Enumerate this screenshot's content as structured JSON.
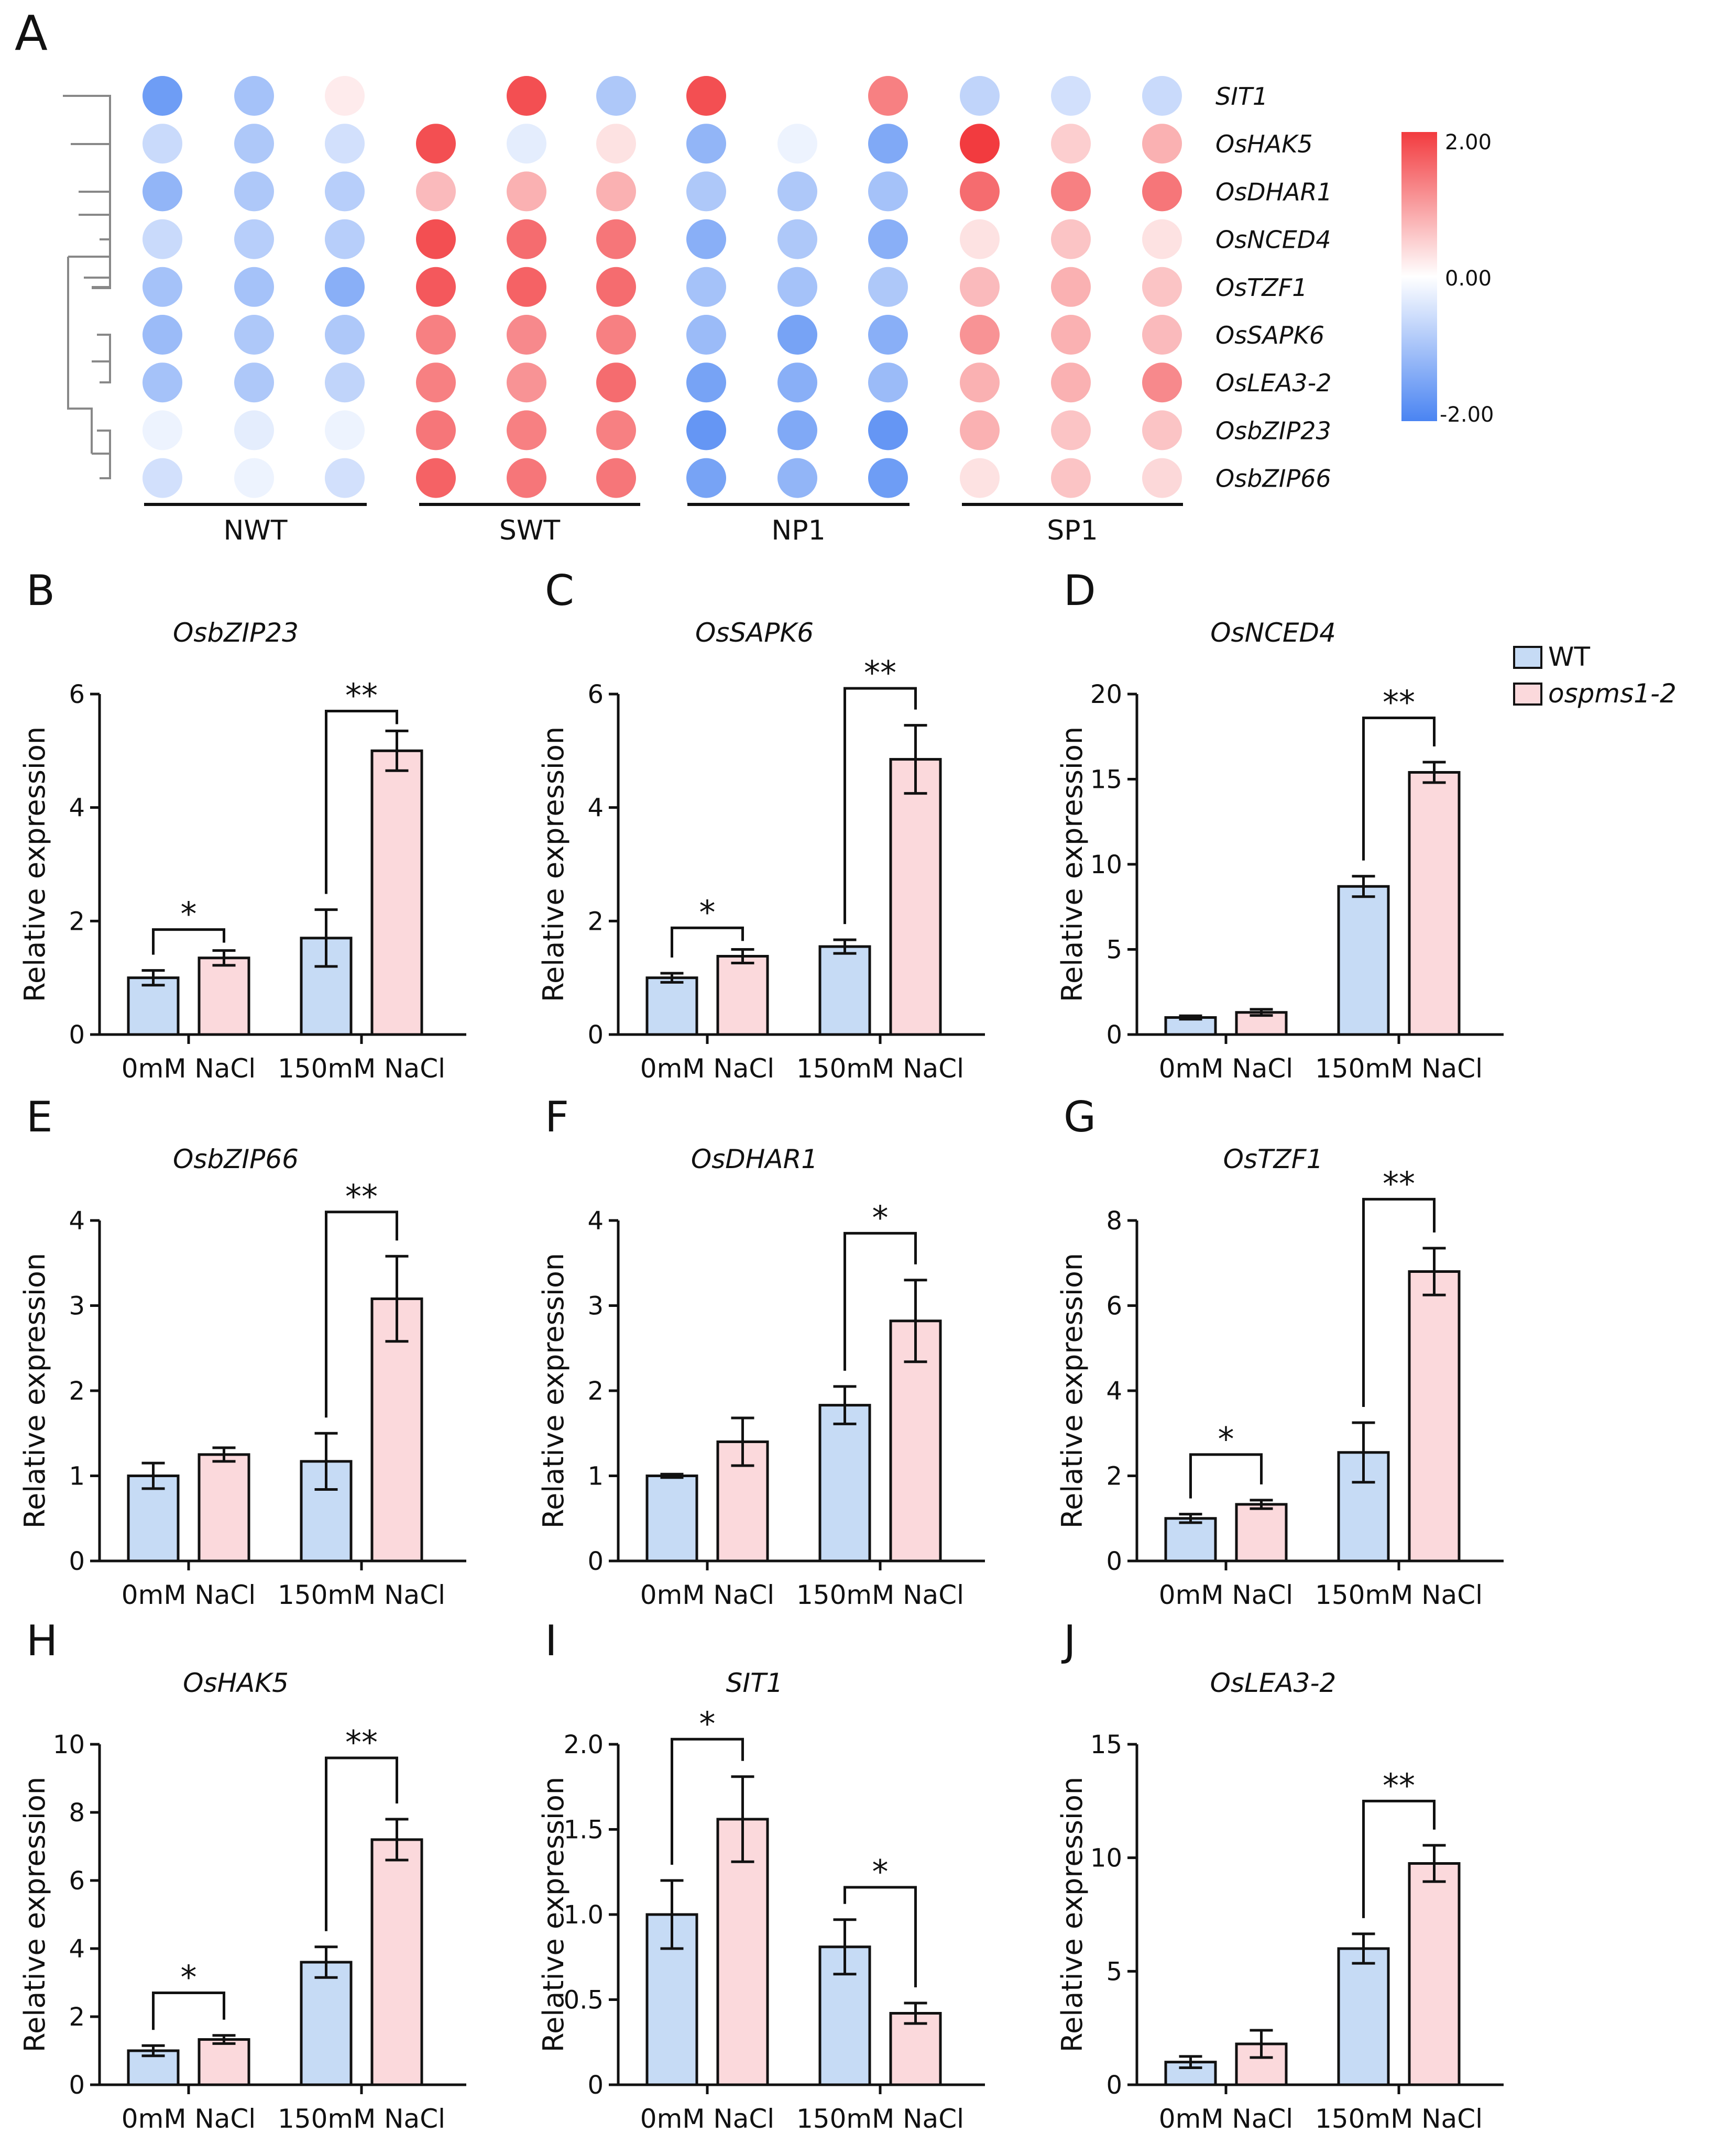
{
  "colors": {
    "wt_fill": "#c6dbf5",
    "mut_fill": "#fbd9dc",
    "bar_stroke": "#111111",
    "scale_high": "#f23b3f",
    "scale_mid": "#ffffff",
    "scale_low": "#4a84f2"
  },
  "chart_data": [
    {
      "id": "A",
      "type": "heatmap",
      "panel_letter": "A",
      "rows": [
        "SIT1",
        "OsHAK5",
        "OsDHAR1",
        "OsNCED4",
        "OsTZF1",
        "OsSAPK6",
        "OsLEA3-2",
        "OsbZIP23",
        "OsbZIP66"
      ],
      "groups": [
        "NWT",
        "SWT",
        "NP1",
        "SP1"
      ],
      "replicates_per_group": 3,
      "values": [
        [
          -1.6,
          -1.0,
          0.2,
          null,
          1.8,
          -0.9,
          1.8,
          null,
          1.3,
          -0.7,
          -0.5,
          -0.6
        ],
        [
          -0.6,
          -0.9,
          -0.5,
          1.8,
          -0.3,
          0.3,
          -1.2,
          -0.2,
          -1.4,
          2.0,
          0.5,
          0.8
        ],
        [
          -1.2,
          -0.9,
          -0.8,
          0.7,
          0.8,
          0.8,
          -0.9,
          -0.9,
          -1.0,
          1.5,
          1.3,
          1.4
        ],
        [
          -0.6,
          -0.8,
          -0.8,
          1.8,
          1.5,
          1.4,
          -1.3,
          -0.9,
          -1.3,
          0.3,
          0.6,
          0.3
        ],
        [
          -1.0,
          -1.0,
          -1.3,
          1.7,
          1.6,
          1.5,
          -1.0,
          -1.0,
          -0.9,
          0.7,
          0.8,
          0.6
        ],
        [
          -1.1,
          -0.9,
          -0.9,
          1.3,
          1.2,
          1.3,
          -1.1,
          -1.5,
          -1.3,
          1.1,
          0.8,
          0.7
        ],
        [
          -1.0,
          -0.9,
          -0.7,
          1.3,
          1.1,
          1.5,
          -1.5,
          -1.3,
          -1.1,
          0.8,
          0.8,
          1.2
        ],
        [
          -0.2,
          -0.3,
          -0.2,
          1.4,
          1.3,
          1.3,
          -1.7,
          -1.4,
          -1.7,
          0.8,
          0.6,
          0.6
        ],
        [
          -0.5,
          -0.2,
          -0.5,
          1.6,
          1.4,
          1.4,
          -1.5,
          -1.2,
          -1.6,
          0.3,
          0.6,
          0.4
        ]
      ],
      "scale_labels": [
        "2.00",
        "0.00",
        "-2.00"
      ],
      "scale_range": [
        -2,
        2
      ]
    },
    {
      "id": "B",
      "type": "bar",
      "panel_letter": "B",
      "title": "OsbZIP23",
      "ylabel": "Relative expression",
      "categories": [
        "0mM NaCl",
        "150mM NaCl"
      ],
      "series": [
        {
          "name": "WT",
          "values": [
            1.0,
            1.7
          ],
          "errors": [
            0.13,
            0.5
          ]
        },
        {
          "name": "ospms1-2",
          "values": [
            1.35,
            5.0
          ],
          "errors": [
            0.13,
            0.35
          ]
        }
      ],
      "ylim": [
        0,
        6
      ],
      "yticks": [
        "0",
        "2",
        "4",
        "6"
      ],
      "ytick_values": [
        0,
        2,
        4,
        6
      ],
      "significance": [
        {
          "category": 0,
          "label": "*",
          "level": 1.85
        },
        {
          "category": 1,
          "label": "**",
          "level": 5.7
        }
      ]
    },
    {
      "id": "C",
      "type": "bar",
      "panel_letter": "C",
      "title": "OsSAPK6",
      "ylabel": "Relative expression",
      "categories": [
        "0mM NaCl",
        "150mM NaCl"
      ],
      "series": [
        {
          "name": "WT",
          "values": [
            1.0,
            1.55
          ],
          "errors": [
            0.08,
            0.12
          ]
        },
        {
          "name": "ospms1-2",
          "values": [
            1.38,
            4.85
          ],
          "errors": [
            0.12,
            0.6
          ]
        }
      ],
      "ylim": [
        0,
        6
      ],
      "yticks": [
        "0",
        "2",
        "4",
        "6"
      ],
      "ytick_values": [
        0,
        2,
        4,
        6
      ],
      "significance": [
        {
          "category": 0,
          "label": "*",
          "level": 1.88
        },
        {
          "category": 1,
          "label": "**",
          "level": 6.1
        }
      ]
    },
    {
      "id": "D",
      "type": "bar",
      "panel_letter": "D",
      "title": "OsNCED4",
      "ylabel": "Relative expression",
      "categories": [
        "0mM NaCl",
        "150mM NaCl"
      ],
      "series": [
        {
          "name": "WT",
          "values": [
            1.0,
            8.7
          ],
          "errors": [
            0.1,
            0.6
          ]
        },
        {
          "name": "ospms1-2",
          "values": [
            1.3,
            15.4
          ],
          "errors": [
            0.18,
            0.6
          ]
        }
      ],
      "ylim": [
        0,
        20
      ],
      "yticks": [
        "0",
        "5",
        "10",
        "15",
        "20"
      ],
      "ytick_values": [
        0,
        5,
        10,
        15,
        20
      ],
      "significance": [
        {
          "category": 1,
          "label": "**",
          "level": 18.6
        }
      ],
      "legend": {
        "entries": [
          "WT",
          "ospms1-2"
        ]
      }
    },
    {
      "id": "E",
      "type": "bar",
      "panel_letter": "E",
      "title": "OsbZIP66",
      "ylabel": "Relative expression",
      "categories": [
        "0mM NaCl",
        "150mM NaCl"
      ],
      "series": [
        {
          "name": "WT",
          "values": [
            1.0,
            1.17
          ],
          "errors": [
            0.15,
            0.33
          ]
        },
        {
          "name": "ospms1-2",
          "values": [
            1.25,
            3.08
          ],
          "errors": [
            0.08,
            0.5
          ]
        }
      ],
      "ylim": [
        0,
        4
      ],
      "yticks": [
        "0",
        "1",
        "2",
        "3",
        "4"
      ],
      "ytick_values": [
        0,
        1,
        2,
        3,
        4
      ],
      "significance": [
        {
          "category": 1,
          "label": "**",
          "level": 4.1
        }
      ]
    },
    {
      "id": "F",
      "type": "bar",
      "panel_letter": "F",
      "title": "OsDHAR1",
      "ylabel": "Relative expression",
      "categories": [
        "0mM NaCl",
        "150mM NaCl"
      ],
      "series": [
        {
          "name": "WT",
          "values": [
            1.0,
            1.83
          ],
          "errors": [
            0.02,
            0.22
          ]
        },
        {
          "name": "ospms1-2",
          "values": [
            1.4,
            2.82
          ],
          "errors": [
            0.28,
            0.48
          ]
        }
      ],
      "ylim": [
        0,
        4
      ],
      "yticks": [
        "0",
        "1",
        "2",
        "3",
        "4"
      ],
      "ytick_values": [
        0,
        1,
        2,
        3,
        4
      ],
      "significance": [
        {
          "category": 1,
          "label": "*",
          "level": 3.85
        }
      ]
    },
    {
      "id": "G",
      "type": "bar",
      "panel_letter": "G",
      "title": "OsTZF1",
      "ylabel": "Relative expression",
      "categories": [
        "0mM NaCl",
        "150mM NaCl"
      ],
      "series": [
        {
          "name": "WT",
          "values": [
            1.0,
            2.55
          ],
          "errors": [
            0.1,
            0.7
          ]
        },
        {
          "name": "ospms1-2",
          "values": [
            1.33,
            6.8
          ],
          "errors": [
            0.1,
            0.55
          ]
        }
      ],
      "ylim": [
        0,
        8
      ],
      "yticks": [
        "0",
        "2",
        "4",
        "6",
        "8"
      ],
      "ytick_values": [
        0,
        2,
        4,
        6,
        8
      ],
      "significance": [
        {
          "category": 0,
          "label": "*",
          "level": 2.5
        },
        {
          "category": 1,
          "label": "**",
          "level": 8.5
        }
      ]
    },
    {
      "id": "H",
      "type": "bar",
      "panel_letter": "H",
      "title": "OsHAK5",
      "ylabel": "Relative expression",
      "categories": [
        "0mM NaCl",
        "150mM NaCl"
      ],
      "series": [
        {
          "name": "WT",
          "values": [
            1.0,
            3.6
          ],
          "errors": [
            0.15,
            0.45
          ]
        },
        {
          "name": "ospms1-2",
          "values": [
            1.33,
            7.2
          ],
          "errors": [
            0.12,
            0.6
          ]
        }
      ],
      "ylim": [
        0,
        10
      ],
      "yticks": [
        "0",
        "2",
        "4",
        "6",
        "8",
        "10"
      ],
      "ytick_values": [
        0,
        2,
        4,
        6,
        8,
        10
      ],
      "significance": [
        {
          "category": 0,
          "label": "*",
          "level": 2.7
        },
        {
          "category": 1,
          "label": "**",
          "level": 9.6
        }
      ]
    },
    {
      "id": "I",
      "type": "bar",
      "panel_letter": "I",
      "title": "SIT1",
      "ylabel": "Relative expression",
      "categories": [
        "0mM NaCl",
        "150mM NaCl"
      ],
      "series": [
        {
          "name": "WT",
          "values": [
            1.0,
            0.81
          ],
          "errors": [
            0.2,
            0.16
          ]
        },
        {
          "name": "ospms1-2",
          "values": [
            1.56,
            0.42
          ],
          "errors": [
            0.25,
            0.06
          ]
        }
      ],
      "ylim": [
        0,
        2.0
      ],
      "yticks": [
        "0",
        "0.5",
        "1.0",
        "1.5",
        "2.0"
      ],
      "ytick_values": [
        0,
        0.5,
        1.0,
        1.5,
        2.0
      ],
      "significance": [
        {
          "category": 0,
          "label": "*",
          "level": 2.03
        },
        {
          "category": 1,
          "label": "*",
          "level": 1.16
        }
      ]
    },
    {
      "id": "J",
      "type": "bar",
      "panel_letter": "J",
      "title": "OsLEA3-2",
      "ylabel": "Relative expression",
      "categories": [
        "0mM NaCl",
        "150mM NaCl"
      ],
      "series": [
        {
          "name": "WT",
          "values": [
            1.0,
            6.0
          ],
          "errors": [
            0.25,
            0.65
          ]
        },
        {
          "name": "ospms1-2",
          "values": [
            1.8,
            9.75
          ],
          "errors": [
            0.6,
            0.8
          ]
        }
      ],
      "ylim": [
        0,
        15
      ],
      "yticks": [
        "0",
        "5",
        "10",
        "15"
      ],
      "ytick_values": [
        0,
        5,
        10,
        15
      ],
      "significance": [
        {
          "category": 1,
          "label": "**",
          "level": 12.5
        }
      ]
    }
  ]
}
